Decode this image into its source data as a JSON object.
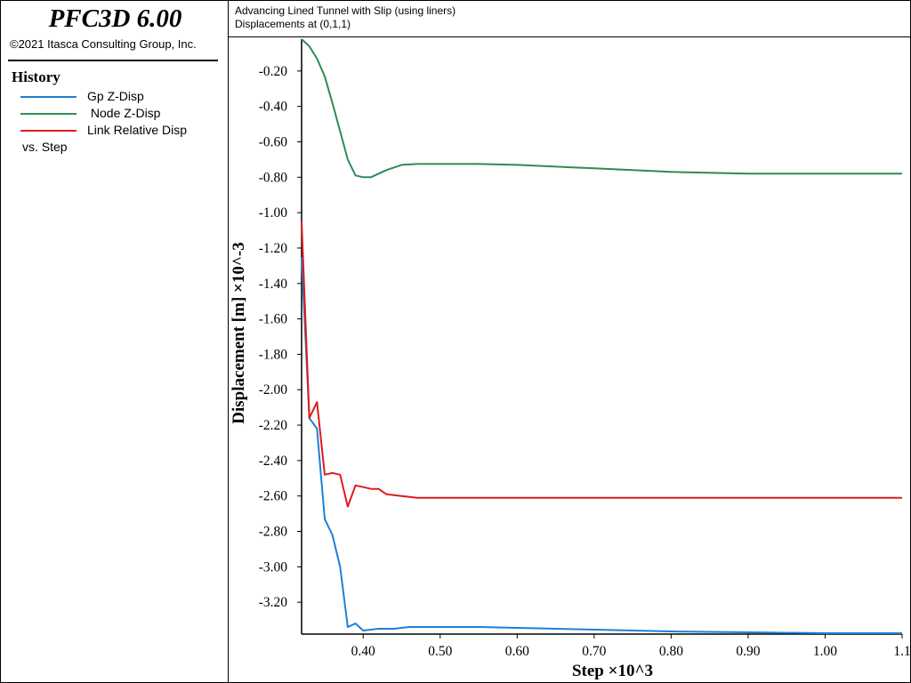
{
  "app": {
    "program_title": "PFC3D 6.00",
    "copyright": "©2021 Itasca Consulting Group, Inc."
  },
  "legend": {
    "heading": "History",
    "items": [
      {
        "label": "Gp Z-Disp",
        "color": "#1e7fd8"
      },
      {
        "label": " Node Z-Disp",
        "color": "#2e8b57"
      },
      {
        "label": "Link Relative Disp",
        "color": "#e01b1b"
      }
    ],
    "vs_label": "vs. Step"
  },
  "chart_data": {
    "type": "line",
    "title": "Advancing Lined Tunnel with Slip (using liners)",
    "subtitle": "Displacements at (0,1,1)",
    "xlabel": "Step ×10^3",
    "ylabel": "Displacement [m] ×10^-3",
    "xlim": [
      0.32,
      1.1
    ],
    "ylim": [
      -3.38,
      -0.02
    ],
    "x_ticks": [
      0.4,
      0.5,
      0.6,
      0.7,
      0.8,
      0.9,
      1.0,
      1.1
    ],
    "x_tick_labels": [
      "0.40",
      "0.50",
      "0.60",
      "0.70",
      "0.80",
      "0.90",
      "1.00",
      "1.1"
    ],
    "y_ticks": [
      -0.2,
      -0.4,
      -0.6,
      -0.8,
      -1.0,
      -1.2,
      -1.4,
      -1.6,
      -1.8,
      -2.0,
      -2.2,
      -2.4,
      -2.6,
      -2.8,
      -3.0,
      -3.2
    ],
    "y_tick_labels": [
      "-0.20",
      "-0.40",
      "-0.60",
      "-0.80",
      "-1.00",
      "-1.20",
      "-1.40",
      "-1.60",
      "-1.80",
      "-2.00",
      "-2.20",
      "-2.40",
      "-2.60",
      "-2.80",
      "-3.00",
      "-3.20"
    ],
    "grid": false,
    "legend_position": "left panel",
    "series": [
      {
        "name": "Gp Z-Disp",
        "color": "#1e7fd8",
        "points": [
          [
            0.32,
            -1.25
          ],
          [
            0.33,
            -2.16
          ],
          [
            0.34,
            -2.22
          ],
          [
            0.35,
            -2.73
          ],
          [
            0.36,
            -2.82
          ],
          [
            0.37,
            -3.0
          ],
          [
            0.38,
            -3.34
          ],
          [
            0.39,
            -3.32
          ],
          [
            0.4,
            -3.36
          ],
          [
            0.42,
            -3.35
          ],
          [
            0.44,
            -3.35
          ],
          [
            0.46,
            -3.34
          ],
          [
            0.5,
            -3.34
          ],
          [
            0.55,
            -3.34
          ],
          [
            0.6,
            -3.345
          ],
          [
            0.7,
            -3.355
          ],
          [
            0.8,
            -3.365
          ],
          [
            0.9,
            -3.37
          ],
          [
            1.0,
            -3.375
          ],
          [
            1.1,
            -3.375
          ]
        ]
      },
      {
        "name": " Node Z-Disp",
        "color": "#2e8b57",
        "points": [
          [
            0.32,
            -0.02
          ],
          [
            0.33,
            -0.06
          ],
          [
            0.34,
            -0.13
          ],
          [
            0.35,
            -0.23
          ],
          [
            0.36,
            -0.38
          ],
          [
            0.37,
            -0.54
          ],
          [
            0.38,
            -0.7
          ],
          [
            0.39,
            -0.79
          ],
          [
            0.4,
            -0.8
          ],
          [
            0.41,
            -0.8
          ],
          [
            0.42,
            -0.78
          ],
          [
            0.43,
            -0.76
          ],
          [
            0.45,
            -0.73
          ],
          [
            0.47,
            -0.725
          ],
          [
            0.5,
            -0.725
          ],
          [
            0.55,
            -0.725
          ],
          [
            0.6,
            -0.73
          ],
          [
            0.7,
            -0.75
          ],
          [
            0.8,
            -0.77
          ],
          [
            0.9,
            -0.78
          ],
          [
            1.0,
            -0.78
          ],
          [
            1.1,
            -0.78
          ]
        ]
      },
      {
        "name": "Link Relative Disp",
        "color": "#e01b1b",
        "points": [
          [
            0.32,
            -1.05
          ],
          [
            0.33,
            -2.16
          ],
          [
            0.34,
            -2.07
          ],
          [
            0.35,
            -2.48
          ],
          [
            0.36,
            -2.47
          ],
          [
            0.37,
            -2.48
          ],
          [
            0.38,
            -2.66
          ],
          [
            0.39,
            -2.54
          ],
          [
            0.4,
            -2.55
          ],
          [
            0.41,
            -2.56
          ],
          [
            0.42,
            -2.56
          ],
          [
            0.43,
            -2.59
          ],
          [
            0.45,
            -2.6
          ],
          [
            0.47,
            -2.61
          ],
          [
            0.5,
            -2.61
          ],
          [
            0.6,
            -2.61
          ],
          [
            0.7,
            -2.61
          ],
          [
            0.8,
            -2.61
          ],
          [
            0.9,
            -2.61
          ],
          [
            1.0,
            -2.61
          ],
          [
            1.1,
            -2.61
          ]
        ]
      }
    ]
  }
}
